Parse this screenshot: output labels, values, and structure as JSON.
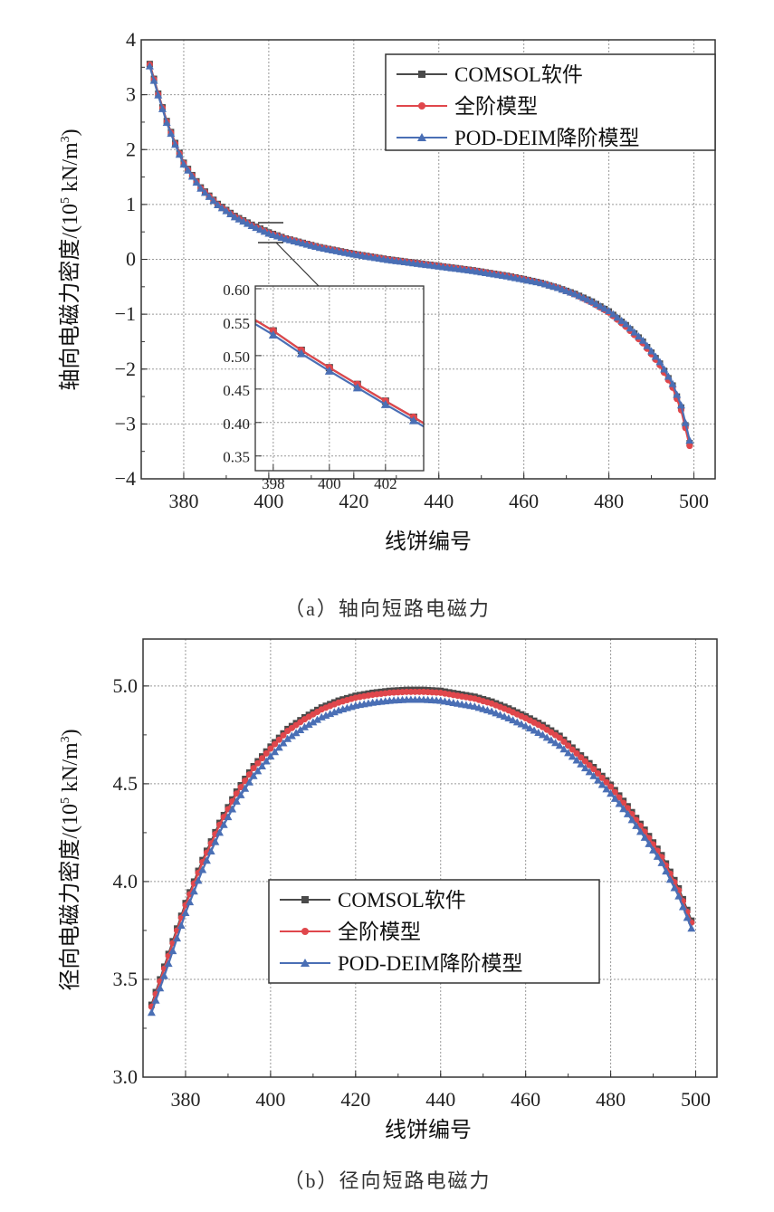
{
  "colors": {
    "comsol": "#4a4a4a",
    "full": "#e0474c",
    "pod": "#4a6fb5"
  },
  "chart_data": [
    {
      "type": "line",
      "caption": "（a）轴向短路电磁力",
      "xlabel": "线饼编号",
      "ylabel": {
        "main": "轴向电磁力密度/(10",
        "sup1": "5",
        "mid": " kN/m",
        "sup2": "3",
        "end": ")"
      },
      "xlim": [
        370,
        505
      ],
      "ylim": [
        -4,
        4
      ],
      "xticks": [
        380,
        400,
        420,
        440,
        460,
        480,
        500
      ],
      "yticks": [
        -4,
        -3,
        -2,
        -1,
        0,
        1,
        2,
        3,
        4
      ],
      "grid": true,
      "legend_position": "top-right",
      "x": [
        372,
        374,
        376,
        378,
        380,
        384,
        388,
        392,
        396,
        400,
        404,
        408,
        412,
        416,
        420,
        424,
        428,
        432,
        436,
        440,
        444,
        448,
        452,
        456,
        460,
        464,
        468,
        472,
        476,
        480,
        484,
        488,
        492,
        495,
        497,
        499
      ],
      "series": [
        {
          "name": "COMSOL软件",
          "marker": "square",
          "values": [
            3.56,
            3.02,
            2.52,
            2.12,
            1.76,
            1.31,
            1.01,
            0.79,
            0.63,
            0.49,
            0.38,
            0.3,
            0.22,
            0.16,
            0.1,
            0.05,
            0.0,
            -0.04,
            -0.08,
            -0.12,
            -0.16,
            -0.2,
            -0.25,
            -0.3,
            -0.36,
            -0.43,
            -0.52,
            -0.63,
            -0.77,
            -0.95,
            -1.2,
            -1.5,
            -1.9,
            -2.3,
            -2.7,
            -3.35
          ]
        },
        {
          "name": "全阶模型",
          "marker": "circle",
          "values": [
            3.55,
            3.01,
            2.51,
            2.11,
            1.75,
            1.3,
            1.0,
            0.78,
            0.62,
            0.48,
            0.38,
            0.3,
            0.22,
            0.16,
            0.1,
            0.05,
            0.0,
            -0.04,
            -0.08,
            -0.12,
            -0.16,
            -0.2,
            -0.25,
            -0.3,
            -0.36,
            -0.43,
            -0.52,
            -0.64,
            -0.79,
            -0.97,
            -1.23,
            -1.53,
            -1.93,
            -2.34,
            -2.75,
            -3.4
          ]
        },
        {
          "name": "POD-DEIM降阶模型",
          "marker": "triangle",
          "values": [
            3.52,
            2.99,
            2.49,
            2.09,
            1.73,
            1.29,
            0.99,
            0.77,
            0.61,
            0.47,
            0.37,
            0.29,
            0.21,
            0.15,
            0.09,
            0.04,
            -0.01,
            -0.05,
            -0.09,
            -0.13,
            -0.17,
            -0.21,
            -0.26,
            -0.31,
            -0.37,
            -0.43,
            -0.52,
            -0.63,
            -0.77,
            -0.94,
            -1.18,
            -1.48,
            -1.87,
            -2.27,
            -2.66,
            -3.3
          ]
        }
      ],
      "inset": {
        "xlim": [
          397.36,
          403.36
        ],
        "ylim": [
          0.328,
          0.604
        ],
        "xticks": [
          398,
          400,
          402
        ],
        "yticks": [
          "0.35",
          "0.40",
          "0.45",
          "0.50",
          "0.55",
          "0.60"
        ],
        "x": [
          397.36,
          398,
          399,
          400,
          401,
          402,
          403,
          403.36
        ],
        "series": [
          {
            "name": "COMSOL软件",
            "values": [
              0.553,
              0.537,
              0.508,
              0.482,
              0.457,
              0.432,
              0.408,
              0.399
            ]
          },
          {
            "name": "全阶模型",
            "values": [
              0.553,
              0.537,
              0.508,
              0.482,
              0.457,
              0.432,
              0.408,
              0.399
            ]
          },
          {
            "name": "POD-DEIM降阶模型",
            "values": [
              0.547,
              0.531,
              0.503,
              0.477,
              0.452,
              0.427,
              0.403,
              0.394
            ]
          }
        ]
      }
    },
    {
      "type": "line",
      "caption": "（b）径向短路电磁力",
      "xlabel": "线饼编号",
      "ylabel": {
        "main": "径向电磁力密度/(10",
        "sup1": "5",
        "mid": " kN/m",
        "sup2": "3",
        "end": ")"
      },
      "xlim": [
        370,
        505
      ],
      "ylim": [
        3.0,
        5.24
      ],
      "xticks": [
        380,
        400,
        420,
        440,
        460,
        480,
        500
      ],
      "yticks": [
        "3.0",
        "3.5",
        "4.0",
        "4.5",
        "5.0"
      ],
      "grid": true,
      "legend_position": "center",
      "x": [
        372,
        376,
        380,
        384,
        388,
        392,
        396,
        400,
        404,
        408,
        412,
        416,
        420,
        424,
        428,
        432,
        436,
        440,
        444,
        448,
        452,
        456,
        460,
        464,
        468,
        472,
        476,
        480,
        484,
        488,
        492,
        496,
        499
      ],
      "series": [
        {
          "name": "COMSOL软件",
          "marker": "square",
          "values": [
            3.37,
            3.63,
            3.89,
            4.11,
            4.3,
            4.46,
            4.59,
            4.69,
            4.78,
            4.84,
            4.89,
            4.925,
            4.95,
            4.965,
            4.975,
            4.98,
            4.98,
            4.975,
            4.96,
            4.945,
            4.92,
            4.885,
            4.845,
            4.8,
            4.745,
            4.665,
            4.585,
            4.495,
            4.385,
            4.265,
            4.135,
            3.965,
            3.8
          ]
        },
        {
          "name": "全阶模型",
          "marker": "circle",
          "values": [
            3.36,
            3.62,
            3.88,
            4.1,
            4.29,
            4.45,
            4.58,
            4.68,
            4.77,
            4.83,
            4.88,
            4.915,
            4.94,
            4.955,
            4.965,
            4.97,
            4.97,
            4.965,
            4.95,
            4.935,
            4.91,
            4.875,
            4.835,
            4.79,
            4.735,
            4.655,
            4.575,
            4.485,
            4.375,
            4.255,
            4.125,
            3.955,
            3.79
          ]
        },
        {
          "name": "POD-DEIM降阶模型",
          "marker": "triangle",
          "values": [
            3.33,
            3.58,
            3.84,
            4.06,
            4.25,
            4.41,
            4.54,
            4.64,
            4.73,
            4.79,
            4.84,
            4.875,
            4.9,
            4.915,
            4.925,
            4.93,
            4.93,
            4.925,
            4.91,
            4.895,
            4.87,
            4.835,
            4.795,
            4.75,
            4.695,
            4.62,
            4.54,
            4.45,
            4.345,
            4.225,
            4.095,
            3.925,
            3.76
          ]
        }
      ]
    }
  ]
}
